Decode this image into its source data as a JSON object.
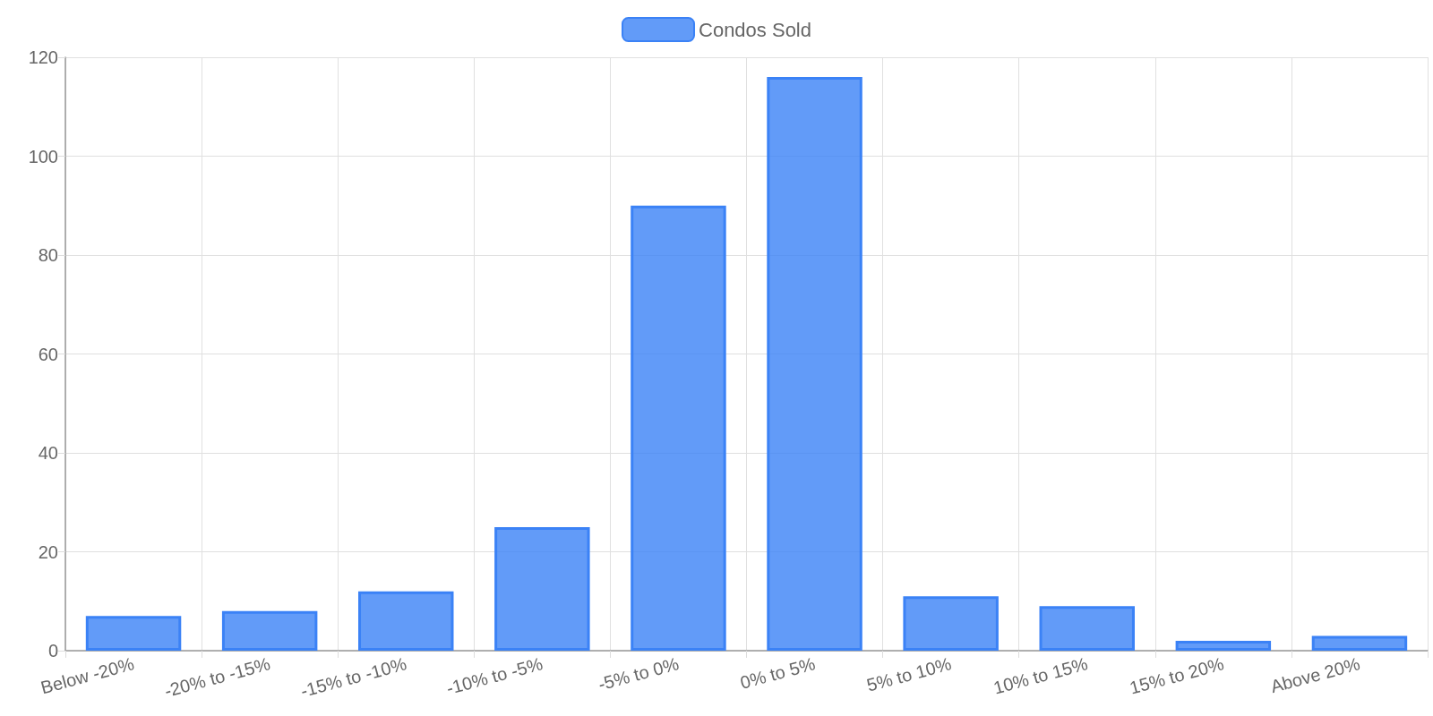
{
  "chart_data": {
    "type": "bar",
    "categories": [
      "Below -20%",
      "-20% to -15%",
      "-15% to -10%",
      "-10% to -5%",
      "-5% to 0%",
      "0% to 5%",
      "5% to 10%",
      "10% to 15%",
      "15% to 20%",
      "Above 20%"
    ],
    "series": [
      {
        "name": "Condos Sold",
        "color": "#3b82f6",
        "values": [
          7,
          8,
          12,
          25,
          90,
          116,
          11,
          9,
          2,
          3
        ]
      }
    ],
    "ylim": [
      0,
      120
    ],
    "yticks": [
      0,
      20,
      40,
      60,
      80,
      100,
      120
    ],
    "grid": true,
    "legend": "top"
  }
}
